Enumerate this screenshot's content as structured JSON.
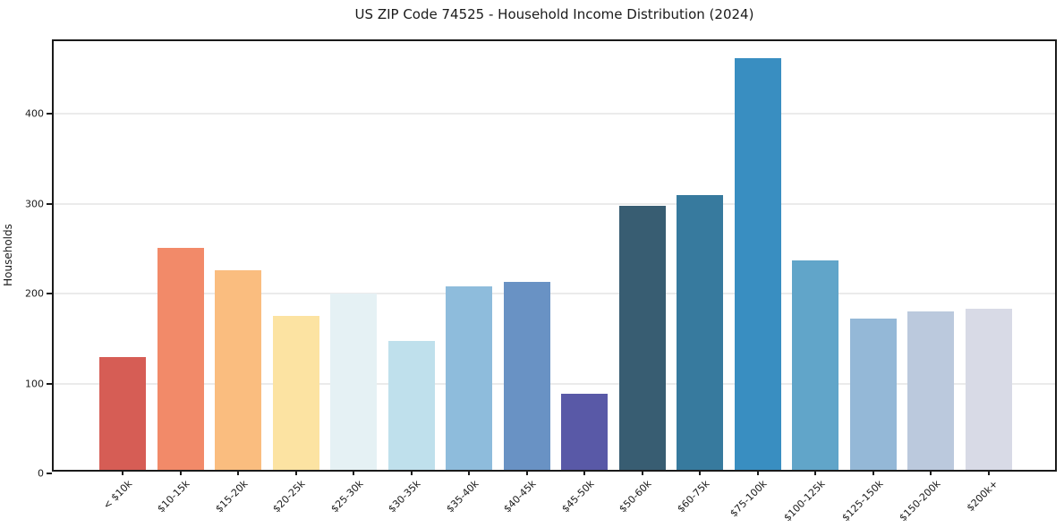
{
  "chart_data": {
    "type": "bar",
    "title": "US ZIP Code 74525 - Household Income Distribution (2024)",
    "xlabel": "",
    "ylabel": "Households",
    "categories": [
      "< $10k",
      "$10-15k",
      "$15-20k",
      "$20-25k",
      "$25-30k",
      "$30-35k",
      "$35-40k",
      "$40-45k",
      "$45-50k",
      "$50-60k",
      "$60-75k",
      "$75-100k",
      "$100-125k",
      "$125-150k",
      "$150-200k",
      "$200k+"
    ],
    "values": [
      125,
      247,
      222,
      171,
      196,
      143,
      204,
      209,
      85,
      294,
      306,
      458,
      233,
      168,
      176,
      179
    ],
    "bar_colors": [
      "#d65d55",
      "#f28a69",
      "#fabd7f",
      "#fce3a2",
      "#e5f1f4",
      "#bfe0ec",
      "#8ebcdc",
      "#6992c4",
      "#5959a7",
      "#385d72",
      "#377a9e",
      "#398ec1",
      "#61a5c9",
      "#94b8d7",
      "#bbc9dd",
      "#d8dae6"
    ],
    "yticks": [
      0,
      100,
      200,
      300,
      400
    ],
    "ylim": [
      0,
      481
    ],
    "grid": "horizontal",
    "grid_color": "#ebebeb",
    "legend": "none",
    "background": "#ffffff",
    "text_color": "#1a1a1a"
  }
}
